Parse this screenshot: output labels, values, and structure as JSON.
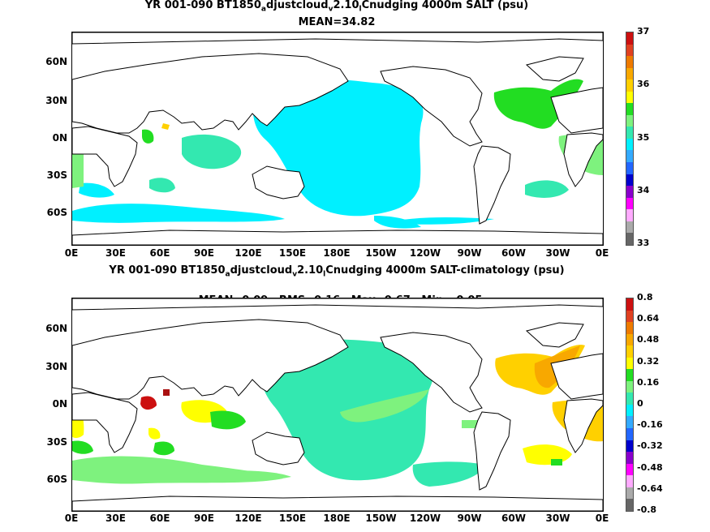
{
  "chart_data": [
    {
      "type": "heatmap",
      "title_line1_pre": "YR 001-090 BT1850",
      "title_sub_a": "a",
      "title_mid1": "djustcloud",
      "title_sub_v": "v",
      "title_mid2": "2.10",
      "title_sub_l": "l",
      "title_post": "Cnudging 4000m SALT (psu)",
      "stats_line": "MEAN=34.82",
      "y_ticks": [
        "60N",
        "30N",
        "0N",
        "30S",
        "60S"
      ],
      "x_ticks": [
        "0E",
        "30E",
        "60E",
        "90E",
        "120E",
        "150E",
        "180E",
        "150W",
        "120W",
        "90W",
        "60W",
        "30W",
        "0E"
      ],
      "colorbar_labels": [
        "37",
        "36",
        "35",
        "34",
        "33"
      ],
      "colorbar_colors": [
        "#cc1010",
        "#e04020",
        "#ee7a00",
        "#f8a800",
        "#ffd000",
        "#ffff00",
        "#22dd22",
        "#7ef27e",
        "#33e8b0",
        "#00f0ff",
        "#33aaff",
        "#2266ff",
        "#0000cc",
        "#8800cc",
        "#ff00ff",
        "#ffaaff",
        "#aaaaaa",
        "#666666"
      ],
      "colorbar_range": [
        33,
        37
      ]
    },
    {
      "type": "heatmap",
      "title_line1_pre": "YR 001-090 BT1850",
      "title_sub_a": "a",
      "title_mid1": "djustcloud",
      "title_sub_v": "v",
      "title_mid2": "2.10",
      "title_sub_l": "l",
      "title_post": "Cnudging 4000m SALT-climatology (psu)",
      "stats_line": "MEAN=0.09   RMS=0.16   Max=0.67   Min=-0.05",
      "y_ticks": [
        "60N",
        "30N",
        "0N",
        "30S",
        "60S"
      ],
      "x_ticks": [
        "0E",
        "30E",
        "60E",
        "90E",
        "120E",
        "150E",
        "180E",
        "150W",
        "120W",
        "90W",
        "60W",
        "30W",
        "0E"
      ],
      "colorbar_labels": [
        "0.8",
        "0.64",
        "0.48",
        "0.32",
        "0.16",
        "0",
        "-0.16",
        "-0.32",
        "-0.48",
        "-0.64",
        "-0.8"
      ],
      "colorbar_colors": [
        "#cc1010",
        "#e04020",
        "#ee7a00",
        "#f8a800",
        "#ffd000",
        "#ffff00",
        "#22dd22",
        "#7ef27e",
        "#33e8b0",
        "#00f0ff",
        "#33aaff",
        "#2266ff",
        "#0000cc",
        "#8800cc",
        "#ff00ff",
        "#ffaaff",
        "#aaaaaa",
        "#666666"
      ],
      "colorbar_range": [
        -0.8,
        0.8
      ]
    }
  ]
}
